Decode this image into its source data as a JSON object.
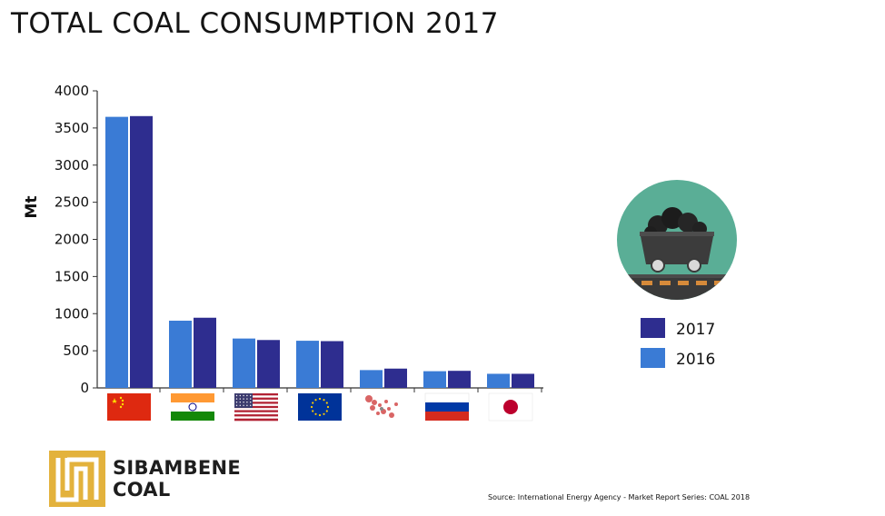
{
  "page": {
    "title": "TOTAL COAL CONSUMPTION 2017",
    "source": "Source: International Energy Agency - Market Report Series: COAL 2018",
    "logo": {
      "line1": "SIBAMBENE",
      "line2": "COAL"
    },
    "icon": "coal-mine-cart-icon"
  },
  "colors": {
    "series_2016": "#3a7bd5",
    "series_2017": "#2e2d8f",
    "icon_bg": "#5aae96",
    "logo_gold": "#e3b23c"
  },
  "chart_data": {
    "type": "bar",
    "title": "TOTAL COAL CONSUMPTION 2017",
    "ylabel": "Mt",
    "xlabel": "",
    "ylim": [
      0,
      4000
    ],
    "yticks": [
      0,
      500,
      1000,
      1500,
      2000,
      2500,
      3000,
      3500,
      4000
    ],
    "categories": [
      "China",
      "India",
      "United States",
      "European Union",
      "Southeast Asia",
      "Russia",
      "Japan"
    ],
    "category_icons": [
      "flag-china-icon",
      "flag-india-icon",
      "flag-usa-icon",
      "flag-eu-icon",
      "map-southeast-asia-icon",
      "flag-russia-icon",
      "flag-japan-icon"
    ],
    "series": [
      {
        "name": "2016",
        "values": [
          3650,
          905,
          665,
          635,
          240,
          225,
          190
        ]
      },
      {
        "name": "2017",
        "values": [
          3660,
          945,
          645,
          630,
          260,
          230,
          190
        ]
      }
    ],
    "legend": {
      "placement": "right",
      "entries": [
        "2017",
        "2016"
      ]
    },
    "grid": false
  }
}
